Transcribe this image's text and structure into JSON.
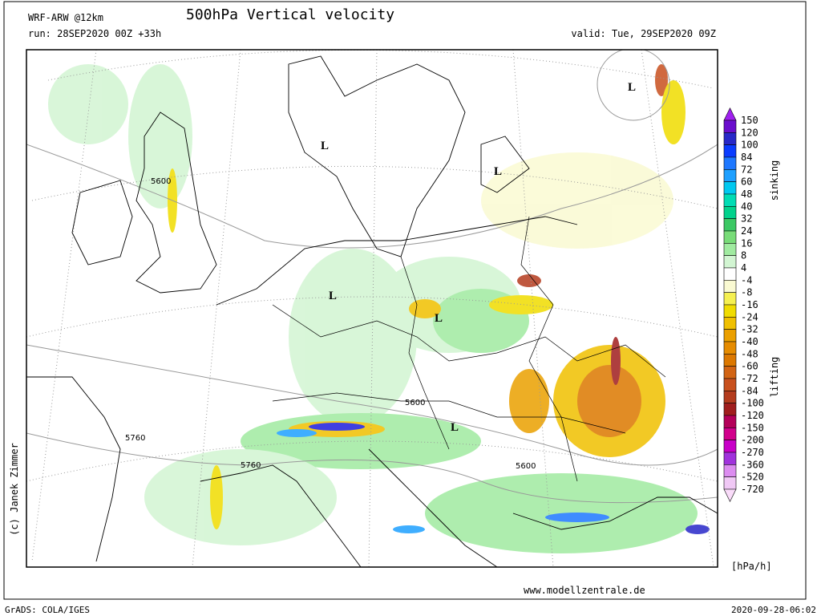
{
  "header": {
    "model": "WRF-ARW @12km",
    "title": "500hPa Vertical velocity",
    "run": "run: 28SEP2020 00Z +33h",
    "valid": "valid: Tue, 29SEP2020 09Z"
  },
  "map": {
    "lows": [
      "L",
      "L",
      "L",
      "L",
      "L",
      "L"
    ],
    "contour_labels": [
      "5600",
      "5600",
      "5760",
      "5760",
      "5600"
    ]
  },
  "legend": {
    "levels": [
      "150",
      "120",
      "100",
      "84",
      "72",
      "60",
      "48",
      "40",
      "32",
      "24",
      "16",
      "8",
      "4",
      "-4",
      "-8",
      "-16",
      "-24",
      "-32",
      "-40",
      "-48",
      "-60",
      "-72",
      "-84",
      "-100",
      "-120",
      "-150",
      "-200",
      "-270",
      "-360",
      "-520",
      "-720"
    ],
    "colors": [
      "#a020f0",
      "#6a0dcd",
      "#2828c8",
      "#0a3cff",
      "#1e78ff",
      "#1ea0ff",
      "#00c8f0",
      "#00dcb4",
      "#00d28c",
      "#3cc864",
      "#78dc78",
      "#a0eba0",
      "#d2f5d2",
      "#ffffff",
      "#fafad2",
      "#f5f050",
      "#f0dc00",
      "#f0c000",
      "#eba000",
      "#e68c00",
      "#dc7800",
      "#d26414",
      "#c8501e",
      "#b43c1e",
      "#a01e1e",
      "#b4005a",
      "#d2008c",
      "#c800c8",
      "#a032dc",
      "#dc8cf0",
      "#f0c8f5",
      "#fadcfa"
    ],
    "sinking_label": "sinking",
    "lifting_label": "lifting",
    "unit": "[hPa/h]"
  },
  "credits": {
    "author": "(c) Janek Zimmer",
    "website": "www.modellzentrale.de",
    "software": "GrADS: COLA/IGES",
    "timestamp": "2020-09-28-06:02"
  }
}
